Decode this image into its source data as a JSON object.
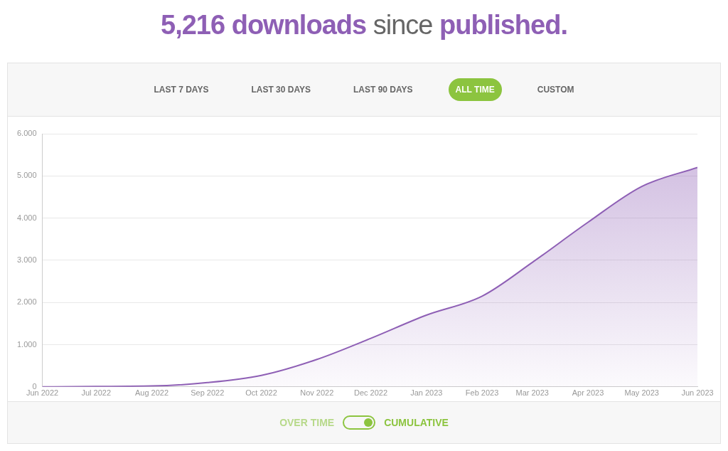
{
  "chart_data": {
    "type": "area",
    "title": "5,216 downloads since published.",
    "annotations": [
      "LAST 7 DAYS",
      "LAST 30 DAYS",
      "LAST 90 DAYS",
      "ALL TIME",
      "CUSTOM",
      "OVER TIME",
      "CUMULATIVE"
    ],
    "x": [
      "2022-06",
      "2022-07",
      "2022-08",
      "2022-09",
      "2022-10",
      "2022-11",
      "2022-12",
      "2023-01",
      "2023-02",
      "2023-03",
      "2023-04",
      "2023-05",
      "2023-06"
    ],
    "series": [
      {
        "color": "#8e5fb5",
        "values": [
          0,
          10,
          20,
          100,
          270,
          650,
          1150,
          1700,
          2150,
          2950,
          3900,
          4750,
          5200
        ]
      }
    ],
    "xlim": [
      "2022-06",
      "2023-06"
    ],
    "xticks": [
      {
        "value": "2022-06",
        "label": "Jun 2022"
      },
      {
        "value": "2022-07",
        "label": "Jul 2022"
      },
      {
        "value": "2022-08",
        "label": "Aug 2022"
      },
      {
        "value": "2022-09",
        "label": "Sep 2022"
      },
      {
        "value": "2022-10",
        "label": "Oct 2022"
      },
      {
        "value": "2022-11",
        "label": "Nov 2022"
      },
      {
        "value": "2022-12",
        "label": "Dec 2022"
      },
      {
        "value": "2023-01",
        "label": "Jan 2023"
      },
      {
        "value": "2023-02",
        "label": "Feb 2023"
      },
      {
        "value": "2023-03",
        "label": "Mar 2023"
      },
      {
        "value": "2023-04",
        "label": "Apr 2023"
      },
      {
        "value": "2023-05",
        "label": "May 2023"
      },
      {
        "value": "2023-06",
        "label": "Jun 2023"
      }
    ],
    "ylim": [
      0,
      6000
    ],
    "yticks": [
      {
        "value": 0,
        "label": "0"
      },
      {
        "value": 1000,
        "label": "1.000"
      },
      {
        "value": 2000,
        "label": "2.000"
      },
      {
        "value": 3000,
        "label": "3.000"
      },
      {
        "value": 4000,
        "label": "4.000"
      },
      {
        "value": 5000,
        "label": "5.000"
      },
      {
        "value": 6000,
        "label": "6.000"
      }
    ],
    "grid": "y",
    "legend": false,
    "marker": "none",
    "line_style": "solid"
  }
}
